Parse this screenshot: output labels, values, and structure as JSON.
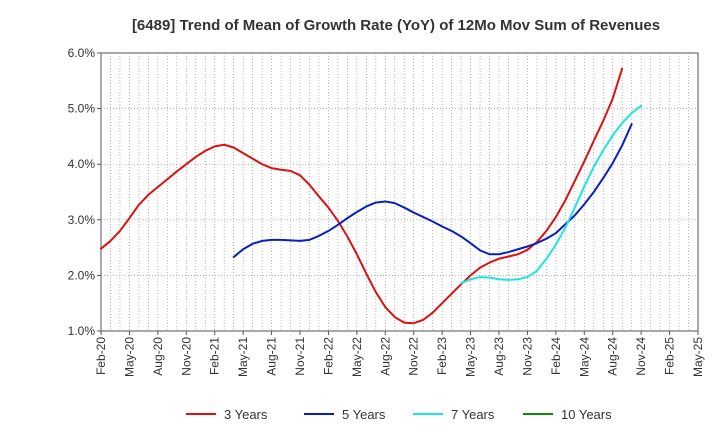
{
  "chart_data": {
    "type": "line",
    "title": "[6489]  Trend of Mean of Growth Rate (YoY) of 12Mo Mov Sum of Revenues",
    "xlabel": "",
    "ylabel": "",
    "x_ticks": [
      "Feb-20",
      "May-20",
      "Aug-20",
      "Nov-20",
      "Feb-21",
      "May-21",
      "Aug-21",
      "Nov-21",
      "Feb-22",
      "May-22",
      "Aug-22",
      "Nov-22",
      "Feb-23",
      "May-23",
      "Aug-23",
      "Nov-23",
      "Feb-24",
      "May-24",
      "Aug-24",
      "Nov-24",
      "Feb-25",
      "May-25"
    ],
    "y_ticks": [
      "1.0%",
      "2.0%",
      "3.0%",
      "4.0%",
      "5.0%",
      "6.0%"
    ],
    "ylim": [
      1.0,
      6.0
    ],
    "x_start": "Feb-20",
    "x_end": "May-25",
    "grid": true,
    "legend_position": "bottom",
    "series": [
      {
        "name": "3 Years",
        "color": "#dd1111",
        "start": "Feb-20",
        "values": [
          2.48,
          2.62,
          2.8,
          3.03,
          3.27,
          3.45,
          3.59,
          3.73,
          3.87,
          4.0,
          4.13,
          4.24,
          4.32,
          4.35,
          4.3,
          4.2,
          4.1,
          4.0,
          3.93,
          3.9,
          3.88,
          3.8,
          3.63,
          3.42,
          3.22,
          2.98,
          2.7,
          2.38,
          2.03,
          1.7,
          1.43,
          1.25,
          1.15,
          1.14,
          1.2,
          1.33,
          1.5,
          1.67,
          1.84,
          2.0,
          2.14,
          2.23,
          2.3,
          2.34,
          2.38,
          2.46,
          2.6,
          2.8,
          3.05,
          3.35,
          3.7,
          4.05,
          4.42,
          4.78,
          5.18,
          5.72
        ]
      },
      {
        "name": "5 Years",
        "color": "#0a1fbf",
        "start": "Apr-21",
        "values": [
          2.33,
          2.47,
          2.57,
          2.62,
          2.64,
          2.64,
          2.63,
          2.62,
          2.64,
          2.71,
          2.8,
          2.91,
          3.03,
          3.14,
          3.24,
          3.31,
          3.33,
          3.3,
          3.22,
          3.13,
          3.05,
          2.97,
          2.88,
          2.8,
          2.7,
          2.58,
          2.45,
          2.38,
          2.38,
          2.42,
          2.47,
          2.52,
          2.58,
          2.66,
          2.76,
          2.92,
          3.08,
          3.28,
          3.5,
          3.75,
          4.02,
          4.34,
          4.72
        ]
      },
      {
        "name": "7 Years",
        "color": "#1ee5e5",
        "start": "Apr-23",
        "values": [
          1.86,
          1.93,
          1.97,
          1.96,
          1.93,
          1.92,
          1.93,
          1.97,
          2.08,
          2.3,
          2.55,
          2.86,
          3.22,
          3.6,
          3.95,
          4.25,
          4.52,
          4.74,
          4.92,
          5.05
        ]
      },
      {
        "name": "10 Years",
        "color": "#118811",
        "start": "Feb-25",
        "values": []
      }
    ]
  }
}
